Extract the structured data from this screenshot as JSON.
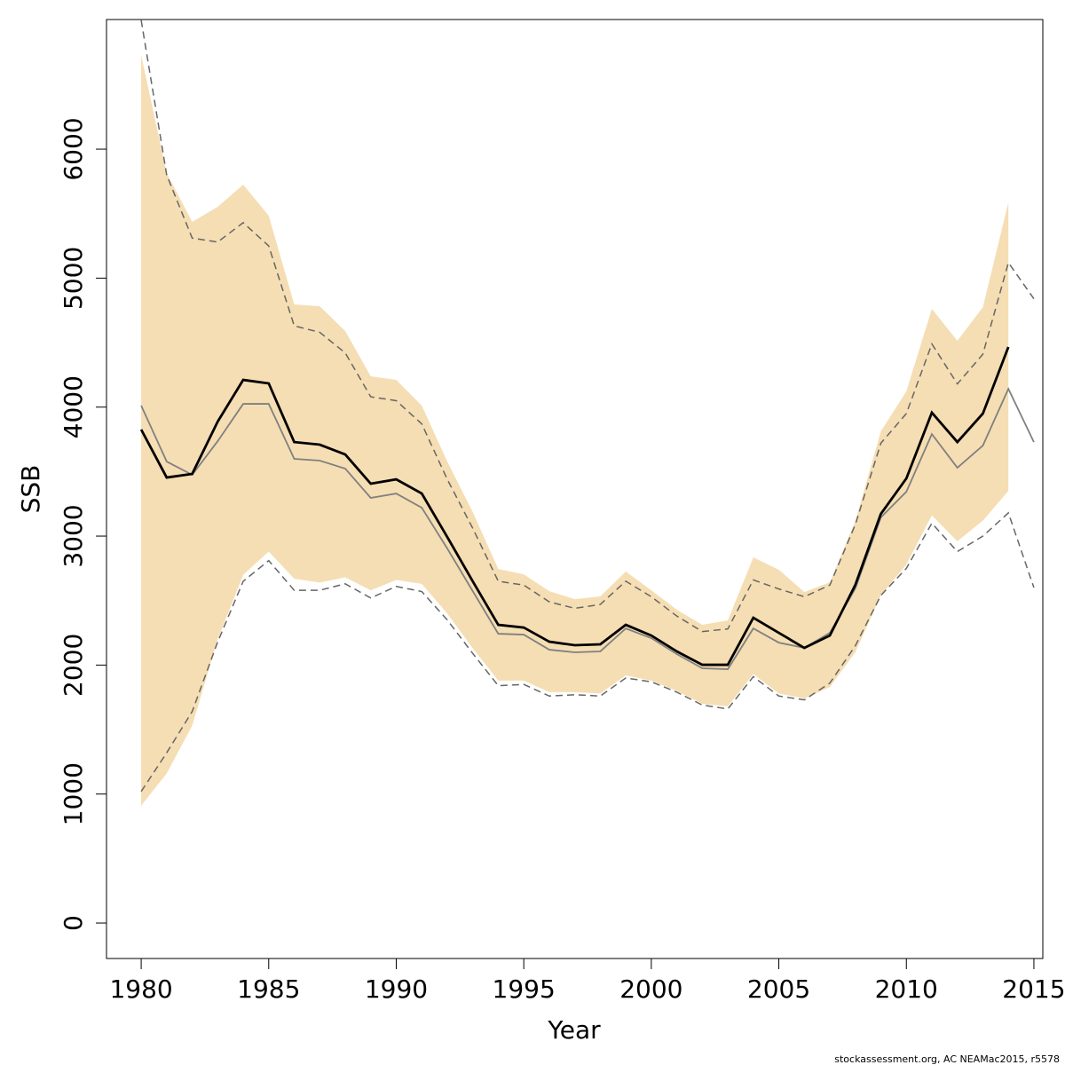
{
  "chart_data": {
    "type": "line",
    "xlabel": "Year",
    "ylabel": "SSB",
    "footnote": "stockassessment.org, AC  NEAMac2015, r5578",
    "x": [
      1980,
      1981,
      1982,
      1983,
      1984,
      1985,
      1986,
      1987,
      1988,
      1989,
      1990,
      1991,
      1992,
      1993,
      1994,
      1995,
      1996,
      1997,
      1998,
      1999,
      2000,
      2001,
      2002,
      2003,
      2004,
      2005,
      2006,
      2007,
      2008,
      2009,
      2010,
      2011,
      2012,
      2013,
      2014,
      2015
    ],
    "xlim": [
      1978.64,
      2015.35
    ],
    "xticks": [
      1980,
      1985,
      1990,
      1995,
      2000,
      2005,
      2010,
      2015
    ],
    "ylim": [
      -275,
      7005
    ],
    "yticks": [
      0,
      1000,
      2000,
      3000,
      4000,
      5000,
      6000
    ],
    "band": {
      "color": "#f5deb3",
      "upper": [
        6729,
        5814,
        5436,
        5553,
        5725,
        5484,
        4796,
        4782,
        4590,
        4239,
        4211,
        4012,
        3578,
        3186,
        2745,
        2704,
        2573,
        2511,
        2532,
        2725,
        2580,
        2429,
        2312,
        2346,
        2835,
        2739,
        2566,
        2642,
        3117,
        3812,
        4122,
        4762,
        4514,
        4775,
        5587,
        null
      ],
      "lower": [
        910,
        1160,
        1530,
        2200,
        2700,
        2880,
        2670,
        2640,
        2680,
        2580,
        2660,
        2630,
        2400,
        2130,
        1880,
        1880,
        1790,
        1790,
        1780,
        1920,
        1880,
        1800,
        1700,
        1680,
        1930,
        1780,
        1740,
        1830,
        2100,
        2540,
        2780,
        3160,
        2960,
        3120,
        3350,
        null
      ]
    },
    "series": [
      {
        "color": "#666666",
        "dash": true,
        "width": 1.5,
        "values": [
          7000,
          5800,
          5310,
          5280,
          5430,
          5250,
          4630,
          4580,
          4420,
          4080,
          4050,
          3870,
          3440,
          3060,
          2650,
          2620,
          2490,
          2440,
          2470,
          2650,
          2530,
          2380,
          2260,
          2280,
          2660,
          2590,
          2530,
          2620,
          3090,
          3720,
          3950,
          4490,
          4180,
          4410,
          5120,
          4840
        ]
      },
      {
        "color": "#666666",
        "dash": true,
        "width": 1.5,
        "values": [
          1020,
          1320,
          1640,
          2180,
          2650,
          2810,
          2580,
          2580,
          2630,
          2520,
          2610,
          2570,
          2350,
          2090,
          1840,
          1850,
          1760,
          1770,
          1760,
          1900,
          1870,
          1790,
          1690,
          1660,
          1910,
          1760,
          1730,
          1860,
          2150,
          2540,
          2750,
          3100,
          2880,
          3000,
          3180,
          2600
        ]
      },
      {
        "color": "#808080",
        "dash": false,
        "width": 1.8,
        "values": [
          4012,
          3578,
          3475,
          3736,
          4025,
          4025,
          3599,
          3585,
          3523,
          3296,
          3330,
          3220,
          2904,
          2573,
          2243,
          2236,
          2119,
          2099,
          2106,
          2284,
          2209,
          2085,
          1975,
          1968,
          2284,
          2174,
          2133,
          2250,
          2594,
          3145,
          3344,
          3791,
          3530,
          3702,
          4142,
          3729
        ]
      },
      {
        "color": "#000000",
        "dash": false,
        "width": 2.8,
        "values": [
          3826,
          3454,
          3482,
          3888,
          4211,
          4184,
          3729,
          3709,
          3633,
          3406,
          3440,
          3330,
          2993,
          2649,
          2312,
          2291,
          2181,
          2154,
          2161,
          2312,
          2229,
          2106,
          2002,
          2002,
          2367,
          2250,
          2133,
          2229,
          2622,
          3172,
          3447,
          3957,
          3729,
          3950,
          4466,
          null
        ]
      }
    ]
  }
}
